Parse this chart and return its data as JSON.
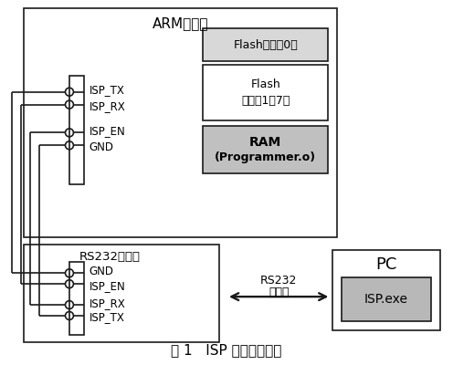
{
  "title": "图 1   ISP 硬件连接框图",
  "arm_board_label": "ARM开发板",
  "rs232_board_label": "RS232转接板",
  "flash0_label": "Flash（扇区0）",
  "flash17_line1": "Flash",
  "flash17_line2": "（扇区1～7）",
  "ram_line1": "RAM",
  "ram_line2": "(Programmer.o)",
  "pc_label": "PC",
  "isp_exe_label": "ISP.exe",
  "rs232_cable_line1": "RS232",
  "rs232_cable_line2": "电缆线",
  "arm_pins_line1": "ISP_TX",
  "arm_pins_line2": "ISP_RX",
  "arm_pins_line3": "ISP_EN",
  "arm_pins_line4": "GND",
  "rs232_pins_line1": "GND",
  "rs232_pins_line2": "ISP_EN",
  "rs232_pins_line3": "ISP_RX",
  "rs232_pins_line4": "ISP_TX",
  "bg_color": "#ffffff",
  "box_edge_color": "#1a1a1a",
  "flash_fill": "#ffffff",
  "flash0_fill": "#d8d8d8",
  "ram_fill": "#c0c0c0",
  "isp_fill": "#b8b8b8",
  "pc_fill": "#ffffff",
  "lw": 1.2
}
